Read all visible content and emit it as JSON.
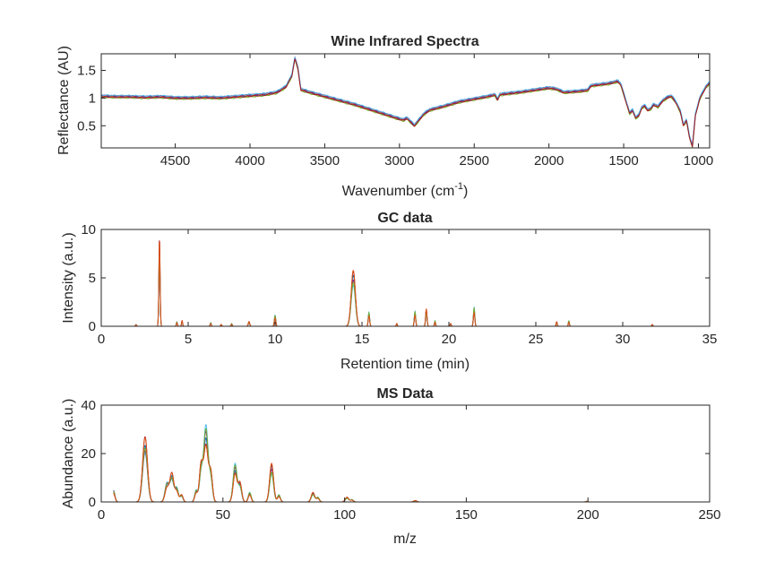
{
  "figure": {
    "background": "#ffffff",
    "axis_color": "#262626"
  },
  "chart_data": [
    {
      "type": "line",
      "title": "Wine Infrared Spectra",
      "xlabel": "Wavenumber (cm-1)",
      "xlabel_main": "Wavenumber (cm",
      "xlabel_sup": "-1",
      "xlabel_close": ")",
      "ylabel": "Reflectance (AU)",
      "x_reversed": true,
      "xlim": [
        4995,
        925
      ],
      "ylim": [
        0.1,
        1.8
      ],
      "xticks": [
        4500,
        4000,
        3500,
        3000,
        2500,
        2000,
        1500,
        1000
      ],
      "xtick_labels": [
        "4500",
        "4000",
        "3500",
        "3000",
        "2500",
        "2000",
        "1500",
        "1000"
      ],
      "yticks": [
        0.5,
        1,
        1.5
      ],
      "ytick_labels": [
        "0.5",
        "1",
        "1.5"
      ],
      "grid": false,
      "series_count": 7,
      "colors": [
        "#0072bd",
        "#d95319",
        "#edb120",
        "#7e2f8e",
        "#77ac30",
        "#4dbeee",
        "#a2142f"
      ],
      "series_offsets": [
        0.0,
        0.012,
        -0.01,
        0.02,
        -0.018,
        0.028,
        -0.006
      ],
      "profile": [
        [
          4995,
          1.03
        ],
        [
          4900,
          1.02
        ],
        [
          4800,
          1.02
        ],
        [
          4700,
          1.01
        ],
        [
          4600,
          1.02
        ],
        [
          4500,
          1.0
        ],
        [
          4400,
          1.0
        ],
        [
          4300,
          1.01
        ],
        [
          4200,
          1.0
        ],
        [
          4100,
          1.02
        ],
        [
          4000,
          1.04
        ],
        [
          3900,
          1.06
        ],
        [
          3820,
          1.1
        ],
        [
          3760,
          1.2
        ],
        [
          3720,
          1.4
        ],
        [
          3700,
          1.72
        ],
        [
          3680,
          1.55
        ],
        [
          3660,
          1.15
        ],
        [
          3600,
          1.1
        ],
        [
          3300,
          0.88
        ],
        [
          3000,
          0.62
        ],
        [
          2970,
          0.6
        ],
        [
          2950,
          0.64
        ],
        [
          2930,
          0.58
        ],
        [
          2900,
          0.5
        ],
        [
          2870,
          0.6
        ],
        [
          2840,
          0.7
        ],
        [
          2800,
          0.78
        ],
        [
          2700,
          0.85
        ],
        [
          2600,
          0.93
        ],
        [
          2500,
          0.98
        ],
        [
          2400,
          1.03
        ],
        [
          2360,
          1.06
        ],
        [
          2345,
          0.96
        ],
        [
          2330,
          1.06
        ],
        [
          2300,
          1.07
        ],
        [
          2200,
          1.1
        ],
        [
          2100,
          1.14
        ],
        [
          2000,
          1.18
        ],
        [
          1950,
          1.16
        ],
        [
          1900,
          1.1
        ],
        [
          1800,
          1.12
        ],
        [
          1740,
          1.14
        ],
        [
          1720,
          1.22
        ],
        [
          1600,
          1.26
        ],
        [
          1540,
          1.3
        ],
        [
          1520,
          1.25
        ],
        [
          1480,
          0.9
        ],
        [
          1460,
          0.72
        ],
        [
          1440,
          0.78
        ],
        [
          1420,
          0.64
        ],
        [
          1400,
          0.68
        ],
        [
          1380,
          0.82
        ],
        [
          1360,
          0.86
        ],
        [
          1340,
          0.78
        ],
        [
          1320,
          0.8
        ],
        [
          1300,
          0.88
        ],
        [
          1270,
          0.84
        ],
        [
          1240,
          0.95
        ],
        [
          1200,
          1.02
        ],
        [
          1180,
          1.03
        ],
        [
          1150,
          0.92
        ],
        [
          1120,
          0.75
        ],
        [
          1100,
          0.5
        ],
        [
          1090,
          0.55
        ],
        [
          1080,
          0.6
        ],
        [
          1060,
          0.3
        ],
        [
          1040,
          0.12
        ],
        [
          1020,
          0.7
        ],
        [
          990,
          1.0
        ],
        [
          950,
          1.2
        ],
        [
          925,
          1.27
        ]
      ]
    },
    {
      "type": "line",
      "title": "GC data",
      "xlabel": "Retention time (min)",
      "ylabel": "Intensity (a.u.)",
      "xlim": [
        0,
        35
      ],
      "ylim": [
        0,
        10
      ],
      "xticks": [
        0,
        5,
        10,
        15,
        20,
        25,
        30,
        35
      ],
      "xtick_labels": [
        "0",
        "5",
        "10",
        "15",
        "20",
        "25",
        "30",
        "35"
      ],
      "yticks": [
        0,
        5,
        10
      ],
      "ytick_labels": [
        "0",
        "5",
        "10"
      ],
      "grid": false,
      "x_range": [
        0.3,
        33.8
      ],
      "series_count": 6,
      "colors": [
        "#0072bd",
        "#4dbeee",
        "#a2142f",
        "#7e2f8e",
        "#77ac30",
        "#d95319"
      ],
      "peaks": [
        {
          "x": 2.0,
          "h": 0.2,
          "w": 0.03
        },
        {
          "x": 3.35,
          "h": 9.3,
          "w": 0.035
        },
        {
          "x": 4.35,
          "h": 0.5,
          "w": 0.03
        },
        {
          "x": 4.65,
          "h": 0.6,
          "w": 0.03
        },
        {
          "x": 6.3,
          "h": 0.4,
          "w": 0.03
        },
        {
          "x": 6.9,
          "h": 0.2,
          "w": 0.03
        },
        {
          "x": 7.5,
          "h": 0.3,
          "w": 0.03
        },
        {
          "x": 8.5,
          "h": 0.5,
          "w": 0.04
        },
        {
          "x": 10.0,
          "h": 1.2,
          "w": 0.04
        },
        {
          "x": 14.5,
          "h": 5.8,
          "w": 0.12
        },
        {
          "x": 15.4,
          "h": 1.5,
          "w": 0.04
        },
        {
          "x": 17.0,
          "h": 0.3,
          "w": 0.03
        },
        {
          "x": 18.05,
          "h": 1.6,
          "w": 0.04
        },
        {
          "x": 18.7,
          "h": 1.8,
          "w": 0.04
        },
        {
          "x": 19.2,
          "h": 0.6,
          "w": 0.03
        },
        {
          "x": 20.1,
          "h": 0.3,
          "w": 0.03
        },
        {
          "x": 21.45,
          "h": 2.0,
          "w": 0.04
        },
        {
          "x": 26.2,
          "h": 0.5,
          "w": 0.03
        },
        {
          "x": 26.9,
          "h": 0.6,
          "w": 0.03
        },
        {
          "x": 31.7,
          "h": 0.2,
          "w": 0.03
        }
      ]
    },
    {
      "type": "line",
      "title": "MS Data",
      "xlabel": "m/z",
      "ylabel": "Abundance (a.u.)",
      "xlim": [
        0,
        250
      ],
      "ylim": [
        0,
        40
      ],
      "xticks": [
        0,
        50,
        100,
        150,
        200,
        250
      ],
      "xtick_labels": [
        "0",
        "50",
        "100",
        "150",
        "200",
        "250"
      ],
      "yticks": [
        0,
        20,
        40
      ],
      "ytick_labels": [
        "0",
        "20",
        "40"
      ],
      "grid": false,
      "x_range": [
        5,
        200
      ],
      "series_count": 6,
      "colors": [
        "#0072bd",
        "#4dbeee",
        "#a2142f",
        "#7e2f8e",
        "#77ac30",
        "#d95319"
      ],
      "peaks": [
        {
          "x": 5,
          "h": 5,
          "w": 0.6
        },
        {
          "x": 18,
          "h": 27,
          "w": 1.0
        },
        {
          "x": 27,
          "h": 8,
          "w": 0.8
        },
        {
          "x": 29,
          "h": 12,
          "w": 0.8
        },
        {
          "x": 31,
          "h": 6,
          "w": 0.7
        },
        {
          "x": 33,
          "h": 3,
          "w": 0.6
        },
        {
          "x": 39,
          "h": 5,
          "w": 0.6
        },
        {
          "x": 41,
          "h": 15,
          "w": 0.7
        },
        {
          "x": 43,
          "h": 32,
          "w": 0.9
        },
        {
          "x": 45,
          "h": 12,
          "w": 0.7
        },
        {
          "x": 55,
          "h": 16,
          "w": 0.8
        },
        {
          "x": 57,
          "h": 8,
          "w": 0.7
        },
        {
          "x": 61,
          "h": 4,
          "w": 0.6
        },
        {
          "x": 70,
          "h": 16,
          "w": 0.8
        },
        {
          "x": 73,
          "h": 3,
          "w": 0.6
        },
        {
          "x": 87,
          "h": 4,
          "w": 0.7
        },
        {
          "x": 89,
          "h": 2,
          "w": 0.6
        },
        {
          "x": 101,
          "h": 2,
          "w": 0.7
        },
        {
          "x": 103,
          "h": 1,
          "w": 0.6
        },
        {
          "x": 129,
          "h": 0.6,
          "w": 0.6
        },
        {
          "x": 200,
          "h": 0.4,
          "w": 0.6
        }
      ]
    }
  ]
}
